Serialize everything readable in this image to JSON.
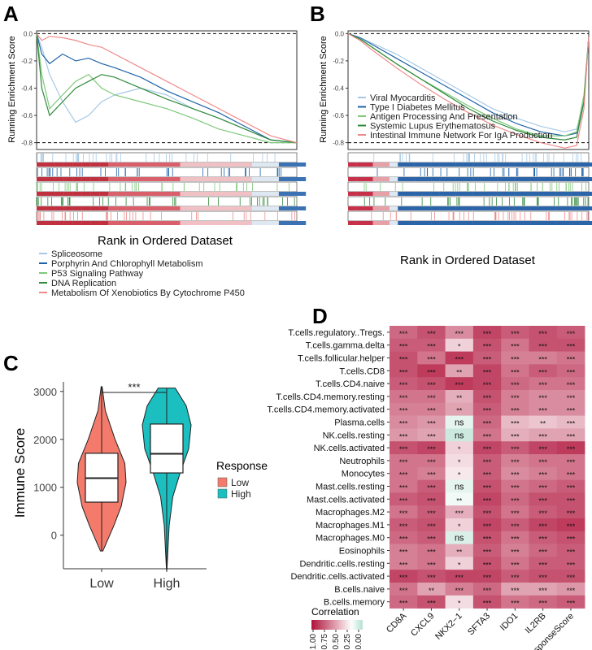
{
  "chart_data": [
    {
      "panel": "A",
      "type": "line",
      "title": "",
      "ylabel": "Running Enrichment Score",
      "xlabel": "Rank in Ordered Dataset",
      "ylim": [
        -0.85,
        0.02
      ],
      "yticks": [
        "0.0",
        "-0.2",
        "-0.4",
        "-0.6",
        "-0.8"
      ],
      "x": [
        0,
        0.02,
        0.05,
        0.1,
        0.15,
        0.2,
        0.25,
        0.3,
        0.4,
        0.5,
        0.6,
        0.7,
        0.8,
        0.9,
        1.0
      ],
      "series": [
        {
          "name": "Spliceosome",
          "color": "#a7c9e4",
          "values": [
            0,
            -0.1,
            -0.3,
            -0.5,
            -0.65,
            -0.6,
            -0.5,
            -0.45,
            -0.4,
            -0.45,
            -0.55,
            -0.62,
            -0.7,
            -0.78,
            -0.8
          ]
        },
        {
          "name": "Porphyrin And Chlorophyll Metabolism",
          "color": "#1f63a8",
          "values": [
            0,
            -0.15,
            -0.22,
            -0.15,
            -0.2,
            -0.18,
            -0.22,
            -0.25,
            -0.32,
            -0.42,
            -0.5,
            -0.58,
            -0.68,
            -0.78,
            -0.8
          ]
        },
        {
          "name": "P53 Signaling Pathway",
          "color": "#7ec87a",
          "values": [
            0,
            -0.3,
            -0.55,
            -0.45,
            -0.35,
            -0.3,
            -0.4,
            -0.45,
            -0.5,
            -0.55,
            -0.62,
            -0.7,
            -0.75,
            -0.8,
            -0.8
          ]
        },
        {
          "name": "DNA Replication",
          "color": "#2f8a3a",
          "values": [
            0,
            -0.4,
            -0.6,
            -0.5,
            -0.4,
            -0.35,
            -0.3,
            -0.32,
            -0.4,
            -0.48,
            -0.55,
            -0.62,
            -0.7,
            -0.78,
            -0.8
          ]
        },
        {
          "name": "Metabolism Of Xenobiotics By Cytochrome P450",
          "color": "#f08a8a",
          "values": [
            0,
            -0.05,
            -0.02,
            -0.03,
            -0.05,
            -0.08,
            -0.1,
            -0.15,
            -0.25,
            -0.35,
            -0.45,
            -0.55,
            -0.65,
            -0.75,
            -0.8
          ]
        }
      ]
    },
    {
      "panel": "B",
      "type": "line",
      "title": "",
      "ylabel": "Running Enrichment Score",
      "xlabel": "Rank in Ordered Dataset",
      "ylim": [
        -0.85,
        0.02
      ],
      "yticks": [
        "0.0",
        "-0.2",
        "-0.4",
        "-0.6",
        "-0.8"
      ],
      "x": [
        0,
        0.05,
        0.1,
        0.2,
        0.3,
        0.4,
        0.5,
        0.6,
        0.7,
        0.8,
        0.9,
        0.95,
        0.98,
        1.0
      ],
      "series": [
        {
          "name": "Viral Myocarditis",
          "color": "#a7c9e4",
          "values": [
            0,
            -0.03,
            -0.07,
            -0.15,
            -0.25,
            -0.35,
            -0.45,
            -0.55,
            -0.62,
            -0.68,
            -0.72,
            -0.7,
            -0.5,
            -0.02
          ]
        },
        {
          "name": "Type I Diabetes Mellitus",
          "color": "#1f63a8",
          "values": [
            0,
            -0.03,
            -0.08,
            -0.18,
            -0.28,
            -0.38,
            -0.48,
            -0.58,
            -0.66,
            -0.72,
            -0.75,
            -0.73,
            -0.5,
            -0.02
          ]
        },
        {
          "name": "Antigen Processing And Presentation",
          "color": "#7ec87a",
          "values": [
            0,
            -0.04,
            -0.1,
            -0.22,
            -0.33,
            -0.43,
            -0.53,
            -0.62,
            -0.7,
            -0.75,
            -0.75,
            -0.72,
            -0.45,
            -0.02
          ]
        },
        {
          "name": "Systemic Lupus Erythematosus",
          "color": "#2f8a3a",
          "values": [
            0,
            -0.04,
            -0.1,
            -0.22,
            -0.33,
            -0.44,
            -0.55,
            -0.64,
            -0.71,
            -0.76,
            -0.78,
            -0.76,
            -0.5,
            -0.02
          ]
        },
        {
          "name": "Intestinal Immune Network For IgA Production",
          "color": "#f08a8a",
          "values": [
            0,
            -0.05,
            -0.12,
            -0.25,
            -0.37,
            -0.48,
            -0.58,
            -0.67,
            -0.74,
            -0.8,
            -0.84,
            -0.82,
            -0.55,
            -0.02
          ]
        }
      ]
    },
    {
      "panel": "C",
      "type": "violin",
      "title": "",
      "xlabel": "",
      "ylabel": "Immune Score",
      "ylim": [
        -700,
        3200
      ],
      "yticks": [
        0,
        1000,
        2000,
        3000
      ],
      "categories": [
        "Low",
        "High"
      ],
      "legend_title": "Response",
      "legend": [
        "Low",
        "High"
      ],
      "colors": [
        "#f47b6b",
        "#1bbfbf"
      ],
      "significance": "***",
      "groups": [
        {
          "name": "Low",
          "min": -330,
          "q1": 690,
          "median": 1190,
          "q3": 1710,
          "max": 3100
        },
        {
          "name": "High",
          "min": -720,
          "q1": 1300,
          "median": 1700,
          "q3": 2320,
          "max": 3070
        }
      ]
    },
    {
      "panel": "D",
      "type": "heatmap",
      "title": "",
      "rows": [
        "T.cells.regulatory..Tregs.",
        "T.cells.gamma.delta",
        "T.cells.follicular.helper",
        "T.cells.CD8",
        "T.cells.CD4.naive",
        "T.cells.CD4.memory.resting",
        "T.cells.CD4.memory.activated",
        "Plasma.cells",
        "NK.cells.resting",
        "NK.cells.activated",
        "Neutrophils",
        "Monocytes",
        "Mast.cells.resting",
        "Mast.cells.activated",
        "Macrophages.M2",
        "Macrophages.M1",
        "Macrophages.M0",
        "Eosinophils",
        "Dendritic.cells.resting",
        "Dendritic.cells.activated",
        "B.cells.naive",
        "B.cells.memory"
      ],
      "columns": [
        "CD8A",
        "CXCL9",
        "NKX2−1",
        "SFTA3",
        "IDO1",
        "IL2RB",
        "ResponseScore"
      ],
      "values": [
        [
          0.65,
          0.75,
          0.5,
          0.8,
          0.7,
          0.75,
          0.7
        ],
        [
          0.7,
          0.7,
          0.2,
          0.75,
          0.6,
          0.75,
          0.75
        ],
        [
          0.75,
          0.6,
          0.85,
          0.7,
          0.55,
          0.55,
          0.6
        ],
        [
          0.75,
          0.85,
          0.4,
          0.8,
          0.6,
          0.7,
          0.65
        ],
        [
          0.7,
          0.75,
          0.85,
          0.8,
          0.65,
          0.6,
          0.6
        ],
        [
          0.6,
          0.6,
          0.35,
          0.75,
          0.55,
          0.5,
          0.5
        ],
        [
          0.55,
          0.55,
          0.4,
          0.7,
          0.55,
          0.5,
          0.5
        ],
        [
          0.5,
          0.45,
          -0.1,
          0.65,
          0.3,
          0.25,
          0.3
        ],
        [
          0.45,
          0.4,
          -0.2,
          0.6,
          0.35,
          0.4,
          0.4
        ],
        [
          0.75,
          0.8,
          0.2,
          0.8,
          0.7,
          0.8,
          0.85
        ],
        [
          0.6,
          0.6,
          0.15,
          0.7,
          0.55,
          0.6,
          0.6
        ],
        [
          0.6,
          0.55,
          0.1,
          0.7,
          0.5,
          0.55,
          0.6
        ],
        [
          0.6,
          0.7,
          -0.1,
          0.75,
          0.6,
          0.65,
          0.7
        ],
        [
          0.7,
          0.75,
          -0.05,
          0.8,
          0.65,
          0.75,
          0.75
        ],
        [
          0.6,
          0.7,
          0.35,
          0.75,
          0.6,
          0.7,
          0.75
        ],
        [
          0.7,
          0.75,
          0.2,
          0.8,
          0.7,
          0.8,
          0.85
        ],
        [
          0.65,
          0.7,
          -0.15,
          0.75,
          0.6,
          0.7,
          0.75
        ],
        [
          0.55,
          0.6,
          0.35,
          0.7,
          0.55,
          0.65,
          0.7
        ],
        [
          0.55,
          0.6,
          0.2,
          0.75,
          0.6,
          0.7,
          0.7
        ],
        [
          0.8,
          0.75,
          0.8,
          0.8,
          0.7,
          0.75,
          0.75
        ],
        [
          0.6,
          0.4,
          0.55,
          0.65,
          0.4,
          0.4,
          0.45
        ],
        [
          0.65,
          0.75,
          0.15,
          0.75,
          0.6,
          0.65,
          0.7
        ]
      ],
      "labels": [
        [
          "***",
          "***",
          "***",
          "***",
          "***",
          "***",
          "***"
        ],
        [
          "***",
          "***",
          "*",
          "***",
          "***",
          "***",
          "***"
        ],
        [
          "***",
          "***",
          "***",
          "***",
          "***",
          "***",
          "***"
        ],
        [
          "***",
          "***",
          "**",
          "***",
          "***",
          "***",
          "***"
        ],
        [
          "***",
          "***",
          "***",
          "***",
          "***",
          "***",
          "***"
        ],
        [
          "***",
          "***",
          "**",
          "***",
          "***",
          "***",
          "***"
        ],
        [
          "***",
          "***",
          "**",
          "***",
          "***",
          "***",
          "***"
        ],
        [
          "***",
          "***",
          "ns",
          "***",
          "***",
          "**",
          "***"
        ],
        [
          "***",
          "***",
          "ns",
          "***",
          "***",
          "***",
          "***"
        ],
        [
          "***",
          "***",
          "*",
          "***",
          "***",
          "***",
          "***"
        ],
        [
          "***",
          "***",
          "*",
          "***",
          "***",
          "***",
          "***"
        ],
        [
          "***",
          "***",
          "*",
          "***",
          "***",
          "***",
          "***"
        ],
        [
          "***",
          "***",
          "ns",
          "***",
          "***",
          "***",
          "***"
        ],
        [
          "***",
          "***",
          "**",
          "***",
          "***",
          "***",
          "***"
        ],
        [
          "***",
          "***",
          "***",
          "***",
          "***",
          "***",
          "***"
        ],
        [
          "***",
          "***",
          "*",
          "***",
          "***",
          "***",
          "***"
        ],
        [
          "***",
          "***",
          "ns",
          "***",
          "***",
          "***",
          "***"
        ],
        [
          "***",
          "***",
          "**",
          "***",
          "***",
          "***",
          "***"
        ],
        [
          "***",
          "***",
          "*",
          "***",
          "***",
          "***",
          "***"
        ],
        [
          "***",
          "***",
          "***",
          "***",
          "***",
          "***",
          "***"
        ],
        [
          "***",
          "**",
          "***",
          "***",
          "***",
          "***",
          "***"
        ],
        [
          "***",
          "***",
          "*",
          "***",
          "***",
          "***",
          "***"
        ]
      ],
      "legend_title": "Correlation",
      "legend_ticks": [
        "1.00",
        "0.75",
        "0.50",
        "0.25",
        "0.00"
      ],
      "colors": {
        "high": "#b2183f",
        "mid": "#ffffff",
        "low": "#7fc8b0"
      }
    }
  ],
  "panel_letters": [
    "A",
    "B",
    "C",
    "D"
  ]
}
